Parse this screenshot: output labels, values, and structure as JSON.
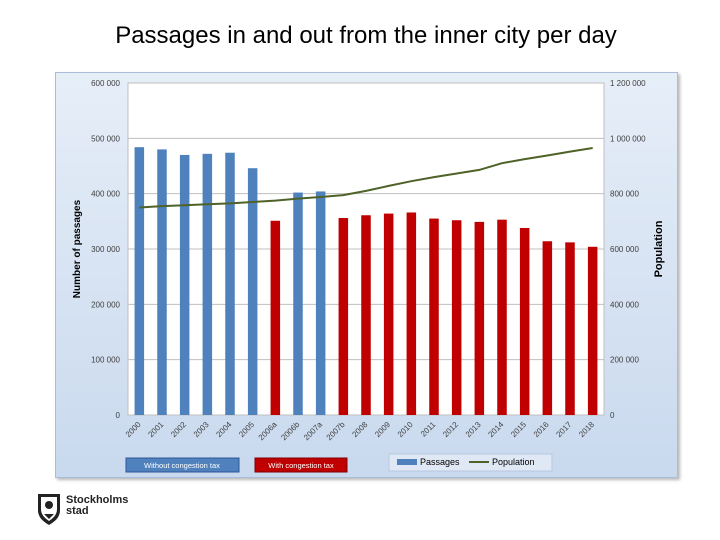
{
  "slide": {
    "title": "Passages in and out from the inner city per day"
  },
  "logo": {
    "line1": "Stockholms",
    "line2": "stad"
  },
  "chart_data": {
    "type": "bar",
    "title": "",
    "ylabel": "Number of passages",
    "y2label": "Population",
    "ylim": [
      0,
      600000
    ],
    "y2lim": [
      0,
      1200000
    ],
    "yticks": [
      "0",
      "100 000",
      "200 000",
      "300 000",
      "400 000",
      "500 000",
      "600 000"
    ],
    "y2ticks": [
      "0",
      "200 000",
      "400 000",
      "600 000",
      "800 000",
      "1 000 000",
      "1 200 000"
    ],
    "grid": true,
    "categories": [
      "2000",
      "2001",
      "2002",
      "2003",
      "2004",
      "2005",
      "2006a",
      "2006b",
      "2007a",
      "2007b",
      "2008",
      "2009",
      "2010",
      "2011",
      "2012",
      "2013",
      "2014",
      "2015",
      "2016",
      "2017",
      "2018"
    ],
    "series": [
      {
        "name": "Passages",
        "kind": "bar",
        "values": [
          484000,
          480000,
          470000,
          472000,
          474000,
          446000,
          351000,
          402000,
          404000,
          356000,
          361000,
          364000,
          366000,
          355000,
          352000,
          349000,
          353000,
          338000,
          314000,
          312000,
          304000
        ],
        "congestion_tax": [
          false,
          false,
          false,
          false,
          false,
          false,
          true,
          false,
          false,
          true,
          true,
          true,
          true,
          true,
          true,
          true,
          true,
          true,
          true,
          true,
          true
        ]
      },
      {
        "name": "Population",
        "kind": "line",
        "axis": "right",
        "values": [
          750000,
          755000,
          758000,
          762000,
          765000,
          770000,
          775000,
          782000,
          788000,
          795000,
          810000,
          828000,
          845000,
          860000,
          873000,
          886000,
          910000,
          925000,
          938000,
          952000,
          965000
        ]
      }
    ],
    "colors": {
      "bar_without_tax": "#4f81bd",
      "bar_with_tax": "#c00000",
      "population_line": "#4f6228"
    },
    "period_legend": {
      "without": "Without congestion tax",
      "with": "With congestion tax"
    },
    "legend_position": "bottom-right"
  }
}
